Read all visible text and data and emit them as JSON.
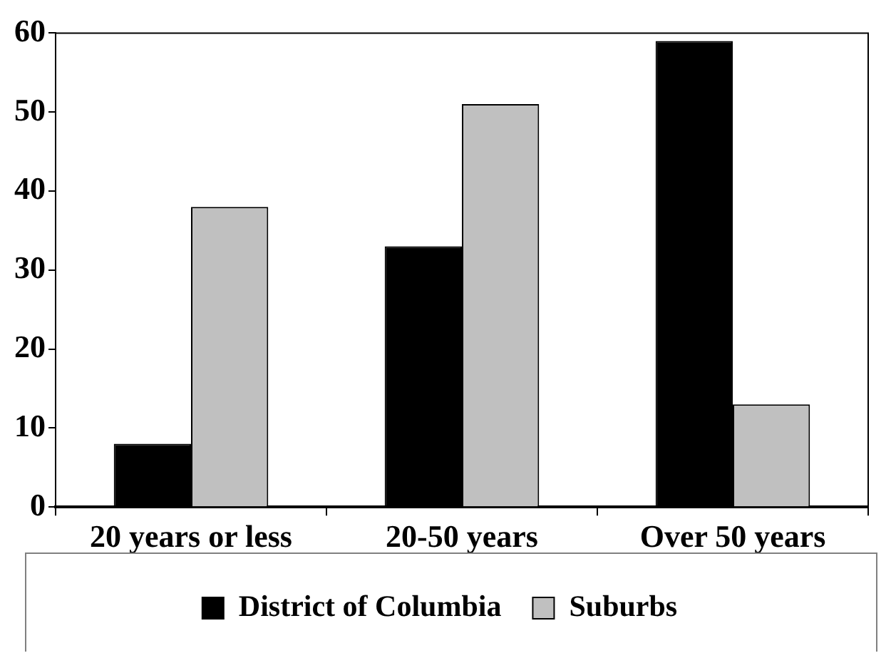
{
  "chart_data": {
    "type": "bar",
    "categories": [
      "20 years or less",
      "20-50 years",
      "Over 50 years"
    ],
    "series": [
      {
        "name": "District of Columbia",
        "color": "#000000",
        "values": [
          8,
          33,
          59
        ]
      },
      {
        "name": "Suburbs",
        "color": "#c0c0c0",
        "values": [
          38,
          51,
          13
        ]
      }
    ],
    "ylim": [
      0,
      60
    ],
    "yticks": [
      0,
      10,
      20,
      30,
      40,
      50,
      60
    ],
    "grid": false,
    "legend": "bottom"
  }
}
